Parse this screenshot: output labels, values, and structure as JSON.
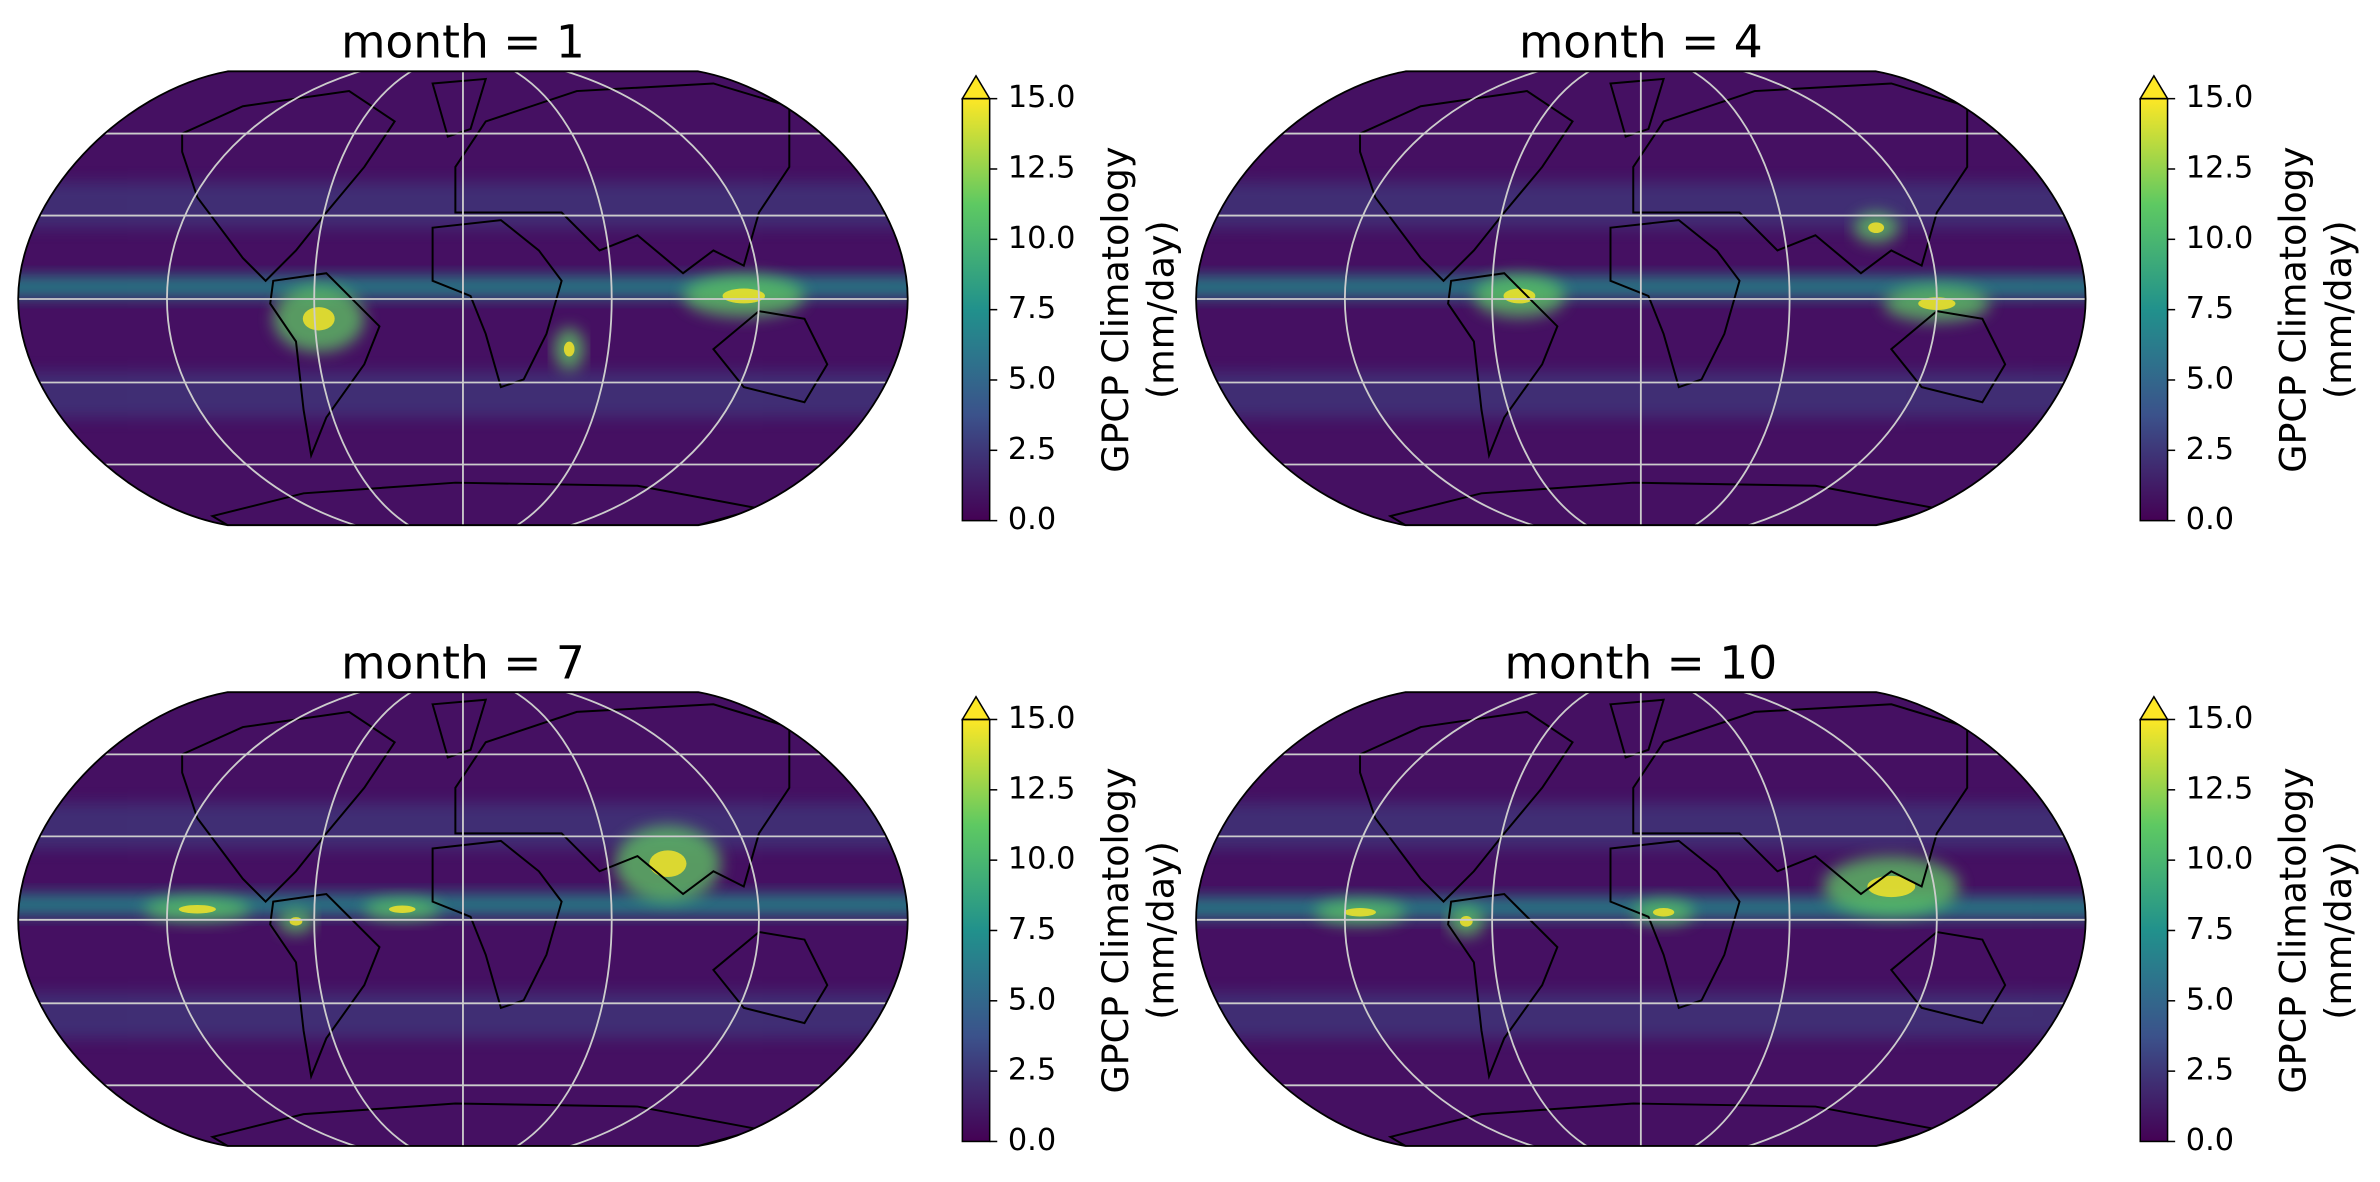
{
  "chart_data": [
    {
      "type": "map",
      "title": "month = 1",
      "colorbar": {
        "label": [
          "GPCP Climatology",
          "(mm/day)"
        ],
        "colormap": "viridis",
        "extend": "max",
        "lim": [
          0,
          15
        ],
        "ticks": [
          {
            "value": 0,
            "label": "0.0"
          },
          2.5,
          {
            "value": 5,
            "label": "5.0"
          },
          {
            "value": 7.5,
            "label": "7.5"
          },
          {
            "value": 10,
            "label": "10.0"
          },
          12.5,
          {
            "value": 15,
            "label": "15.0"
          }
        ]
      }
    },
    {
      "type": "map",
      "title": "month = 4",
      "colorbar": {
        "label": [
          "GPCP Climatology",
          "(mm/day)"
        ],
        "colormap": "viridis",
        "extend": "max",
        "lim": [
          0,
          15
        ],
        "ticks": [
          {
            "value": 0,
            "label": "0.0"
          },
          2.5,
          {
            "value": 5,
            "label": "5.0"
          },
          {
            "value": 7.5,
            "label": "7.5"
          },
          {
            "value": 10,
            "label": "10.0"
          },
          12.5,
          {
            "value": 15,
            "label": "15.0"
          }
        ]
      }
    },
    {
      "type": "map",
      "title": "month = 7",
      "colorbar": {
        "label": [
          "GPCP Climatology",
          "(mm/day)"
        ],
        "colormap": "viridis",
        "extend": "max",
        "lim": [
          0,
          15
        ],
        "ticks": [
          {
            "value": 0,
            "label": "0.0"
          },
          2.5,
          {
            "value": 5,
            "label": "5.0"
          },
          {
            "value": 7.5,
            "label": "7.5"
          },
          {
            "value": 10,
            "label": "10.0"
          },
          12.5,
          {
            "value": 15,
            "label": "15.0"
          }
        ]
      }
    },
    {
      "type": "map",
      "title": "month = 10",
      "colorbar": {
        "label": [
          "GPCP Climatology",
          "(mm/day)"
        ],
        "colormap": "viridis",
        "extend": "max",
        "lim": [
          0,
          15
        ],
        "ticks": [
          {
            "value": 0,
            "label": "0.0"
          },
          2.5,
          {
            "value": 5,
            "label": "5.0"
          },
          {
            "value": 7.5,
            "label": "7.5"
          },
          {
            "value": 10,
            "label": "10.0"
          },
          12.5,
          {
            "value": 15,
            "label": "15.0"
          }
        ]
      }
    }
  ]
}
